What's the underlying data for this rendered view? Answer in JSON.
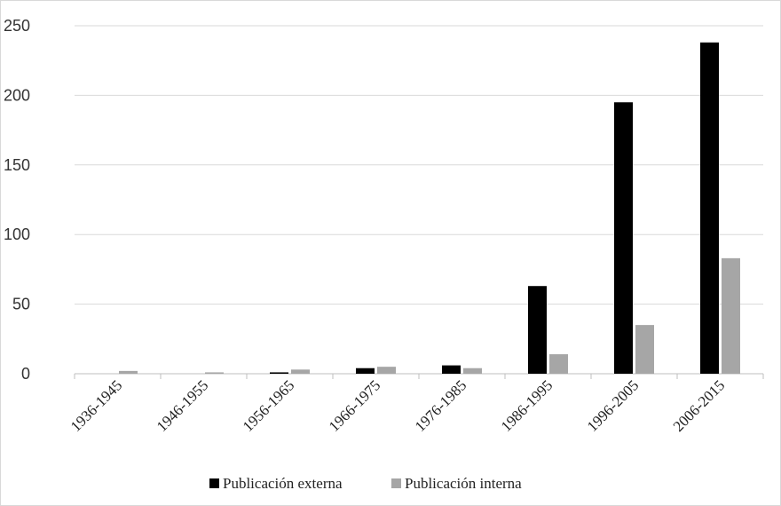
{
  "chart_data": {
    "type": "bar",
    "categories": [
      "1936-1945",
      "1946-1955",
      "1956-1965",
      "1966-1975",
      "1976-1985",
      "1986-1995",
      "1996-2005",
      "2006-2015"
    ],
    "series": [
      {
        "name": "Publicación externa",
        "color": "#000000",
        "values": [
          0,
          0,
          1,
          4,
          6,
          63,
          195,
          238
        ]
      },
      {
        "name": "Publicación interna",
        "color": "#a6a6a6",
        "values": [
          2,
          1,
          3,
          5,
          4,
          14,
          35,
          83
        ]
      }
    ],
    "ylim": [
      0,
      250
    ],
    "yticks": [
      0,
      50,
      100,
      150,
      200,
      250
    ],
    "grid": true,
    "legend": "bottom"
  }
}
